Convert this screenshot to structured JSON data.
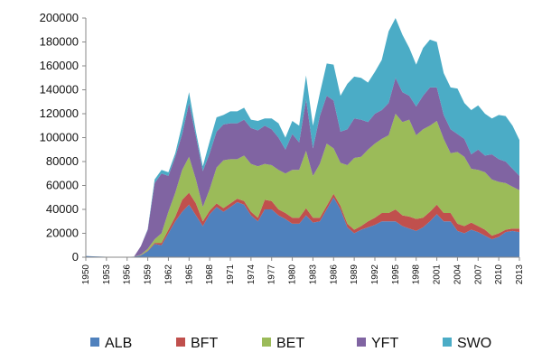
{
  "chart_data": {
    "type": "area",
    "stacked": true,
    "x": [
      1950,
      1951,
      1952,
      1953,
      1954,
      1955,
      1956,
      1957,
      1958,
      1959,
      1960,
      1961,
      1962,
      1963,
      1964,
      1965,
      1966,
      1967,
      1968,
      1969,
      1970,
      1971,
      1972,
      1973,
      1974,
      1975,
      1976,
      1977,
      1978,
      1979,
      1980,
      1981,
      1982,
      1983,
      1984,
      1985,
      1986,
      1987,
      1988,
      1989,
      1990,
      1991,
      1992,
      1993,
      1994,
      1995,
      1996,
      1997,
      1998,
      1999,
      2000,
      2001,
      2002,
      2003,
      2004,
      2005,
      2006,
      2007,
      2008,
      2009,
      2010,
      2011,
      2012,
      2013
    ],
    "x_tick_labels": [
      "1950",
      "1953",
      "1956",
      "1959",
      "1962",
      "1965",
      "1968",
      "1971",
      "1974",
      "1977",
      "1980",
      "1983",
      "1986",
      "1989",
      "1992",
      "1995",
      "1998",
      "2001",
      "2004",
      "2007",
      "2010",
      "2013"
    ],
    "y_ticks": [
      0,
      20000,
      40000,
      60000,
      80000,
      100000,
      120000,
      140000,
      160000,
      180000,
      200000
    ],
    "y_tick_labels": [
      "0",
      "20000",
      "40000",
      "60000",
      "80000",
      "100000",
      "120000",
      "140000",
      "160000",
      "180000",
      "200000"
    ],
    "ylim": [
      0,
      200000
    ],
    "grid": false,
    "legend_position": "bottom",
    "series": [
      {
        "name": "ALB",
        "color": "#4F81BD",
        "values": [
          1000,
          800,
          600,
          400,
          300,
          300,
          300,
          500,
          1500,
          5000,
          11000,
          10000,
          20000,
          30000,
          38000,
          44000,
          35000,
          26000,
          36000,
          42000,
          38000,
          42000,
          46000,
          44000,
          35000,
          30000,
          40000,
          40000,
          35000,
          32000,
          28000,
          28000,
          35000,
          29000,
          30000,
          40000,
          50000,
          40000,
          25000,
          20000,
          23000,
          25000,
          27000,
          30000,
          30000,
          30000,
          26000,
          24000,
          22000,
          25000,
          30000,
          36000,
          30000,
          30000,
          22000,
          20000,
          23000,
          21000,
          18000,
          15000,
          17000,
          21000,
          22000,
          21000
        ]
      },
      {
        "name": "BFT",
        "color": "#C0504D",
        "values": [
          0,
          0,
          0,
          0,
          0,
          0,
          0,
          0,
          200,
          500,
          1000,
          2000,
          3000,
          4000,
          10000,
          10000,
          10000,
          4000,
          3000,
          3000,
          3000,
          3000,
          3000,
          3000,
          3000,
          3000,
          8000,
          7000,
          5000,
          5000,
          5000,
          5000,
          6000,
          4000,
          3000,
          3000,
          3000,
          3000,
          3000,
          3000,
          3000,
          5000,
          6000,
          7000,
          7000,
          10000,
          9000,
          10000,
          10000,
          8000,
          8000,
          8000,
          7000,
          7000,
          6000,
          6000,
          6000,
          5000,
          5000,
          3000,
          3000,
          2000,
          2000,
          3000
        ]
      },
      {
        "name": "BET",
        "color": "#9BBB59",
        "values": [
          0,
          0,
          0,
          0,
          0,
          0,
          0,
          0,
          500,
          1500,
          3000,
          8000,
          15000,
          20000,
          25000,
          30000,
          20000,
          12000,
          18000,
          30000,
          40000,
          37000,
          33000,
          38000,
          40000,
          43000,
          30000,
          30000,
          33000,
          33000,
          40000,
          40000,
          48000,
          35000,
          45000,
          52000,
          38000,
          36000,
          49000,
          60000,
          58000,
          60000,
          62000,
          62000,
          65000,
          80000,
          78000,
          81000,
          70000,
          74000,
          72000,
          70000,
          62000,
          50000,
          60000,
          58000,
          45000,
          47000,
          48000,
          47000,
          43000,
          39000,
          35000,
          32000
        ]
      },
      {
        "name": "YFT",
        "color": "#8064A2",
        "values": [
          0,
          0,
          0,
          0,
          0,
          0,
          0,
          0,
          7000,
          16000,
          47000,
          50000,
          30000,
          30000,
          30000,
          45000,
          36000,
          30000,
          30000,
          30000,
          30000,
          30000,
          30000,
          30000,
          30000,
          30000,
          32000,
          30000,
          27000,
          20000,
          30000,
          23000,
          43000,
          23000,
          40000,
          40000,
          40000,
          26000,
          30000,
          33000,
          31000,
          23000,
          25000,
          24000,
          27000,
          30000,
          25000,
          20000,
          24000,
          28000,
          32000,
          28000,
          20000,
          20000,
          15000,
          15000,
          12000,
          17000,
          14000,
          21000,
          19000,
          18000,
          15000,
          12000
        ]
      },
      {
        "name": "SWO",
        "color": "#4BACC6",
        "values": [
          0,
          0,
          0,
          0,
          0,
          0,
          0,
          0,
          0,
          500,
          3000,
          3000,
          3000,
          3000,
          8000,
          9000,
          4000,
          4000,
          10000,
          12000,
          8000,
          10000,
          10000,
          10000,
          7000,
          8000,
          6000,
          9000,
          12000,
          10000,
          11000,
          14000,
          20000,
          19000,
          19000,
          27000,
          30000,
          30000,
          38000,
          35000,
          35000,
          33000,
          35000,
          42000,
          60000,
          50000,
          48000,
          40000,
          35000,
          40000,
          40000,
          38000,
          35000,
          35000,
          38000,
          30000,
          37000,
          37000,
          35000,
          30000,
          37000,
          38000,
          36000,
          30000
        ]
      }
    ]
  }
}
